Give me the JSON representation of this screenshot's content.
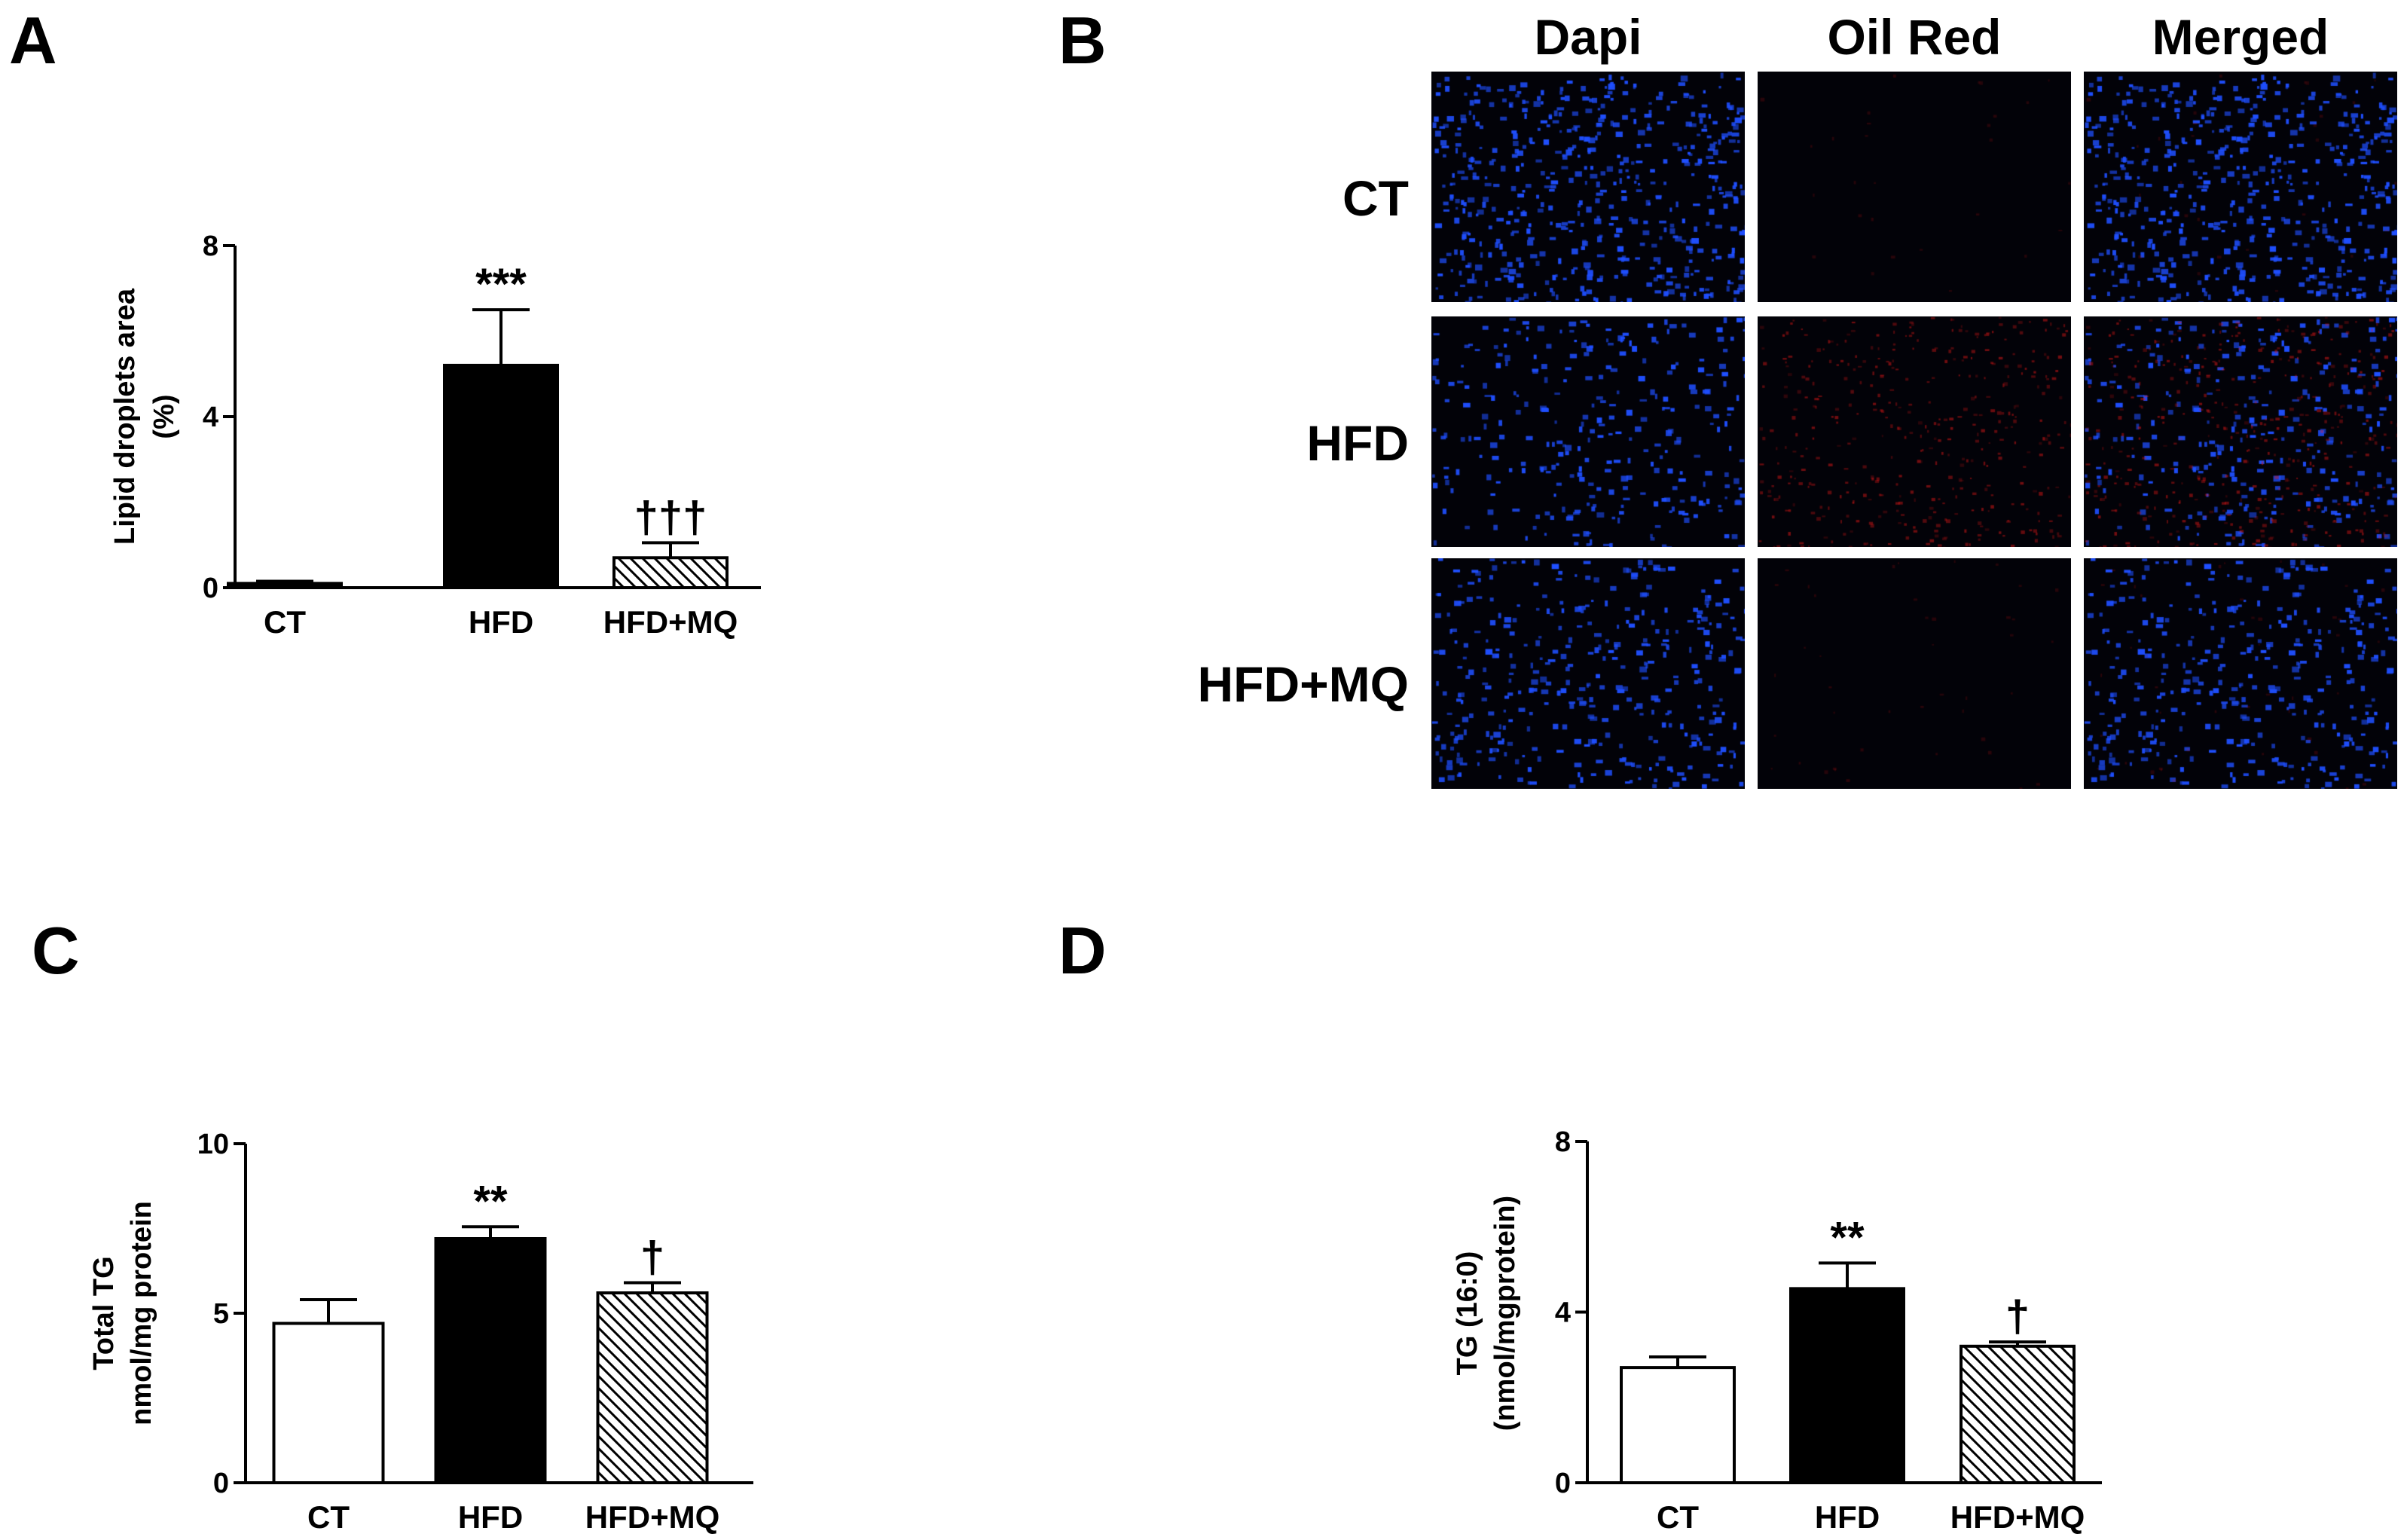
{
  "panel_letters": {
    "a": "A",
    "b": "B",
    "c": "C",
    "d": "D"
  },
  "chart_data": [
    {
      "panel": "A",
      "type": "bar",
      "categories": [
        "CT",
        "HFD",
        "HFD+MQ"
      ],
      "values": [
        0.1,
        5.2,
        0.7
      ],
      "errors": [
        0.05,
        1.3,
        0.35
      ],
      "significance": [
        "",
        "***",
        "†††"
      ],
      "fills": [
        "solid",
        "solid",
        "hatched"
      ],
      "ylabel_lines": [
        "Lipid droplets area",
        "(%)"
      ],
      "xlabel": "",
      "ylim": [
        0,
        8
      ],
      "yticks": [
        0,
        4,
        8
      ],
      "ytick_labels": [
        "0",
        "4",
        "8"
      ],
      "grid": false
    },
    {
      "panel": "C",
      "type": "bar",
      "categories": [
        "CT",
        "HFD",
        "HFD+MQ"
      ],
      "values": [
        4.7,
        7.2,
        5.6
      ],
      "errors": [
        0.7,
        0.35,
        0.3
      ],
      "significance": [
        "",
        "**",
        "†"
      ],
      "fills": [
        "white",
        "solid",
        "hatched"
      ],
      "ylabel_lines": [
        "Total TG",
        "nmol/mg protein"
      ],
      "xlabel": "",
      "ylim": [
        0,
        10
      ],
      "yticks": [
        0,
        5,
        10
      ],
      "ytick_labels": [
        "0",
        "5",
        "10"
      ],
      "grid": false
    },
    {
      "panel": "D",
      "type": "bar",
      "categories": [
        "CT",
        "HFD",
        "HFD+MQ"
      ],
      "values": [
        2.7,
        4.55,
        3.2
      ],
      "errors": [
        0.25,
        0.6,
        0.1
      ],
      "significance": [
        "",
        "**",
        "†"
      ],
      "fills": [
        "white",
        "solid",
        "hatched"
      ],
      "ylabel_lines": [
        "TG (16:0)",
        "(nmol/mgprotein)"
      ],
      "xlabel": "",
      "ylim": [
        0,
        8
      ],
      "yticks": [
        0,
        4,
        8
      ],
      "ytick_labels": [
        "0",
        "4",
        "8"
      ],
      "grid": false
    }
  ],
  "micrographs": {
    "columns": [
      "Dapi",
      "Oil Red",
      "Merged"
    ],
    "rows": [
      "CT",
      "HFD",
      "HFD+MQ"
    ],
    "colors": {
      "background": "#020208",
      "nuclei": "#1f4fff",
      "lipid": "#e01818"
    },
    "red_intensity": [
      [
        0,
        0.04,
        0.04
      ],
      [
        0,
        0.6,
        0.6
      ],
      [
        0,
        0.06,
        0.06
      ]
    ],
    "nuclei_density": [
      [
        1.0,
        0,
        1.0
      ],
      [
        0.55,
        0,
        0.55
      ],
      [
        0.7,
        0,
        0.7
      ]
    ]
  }
}
